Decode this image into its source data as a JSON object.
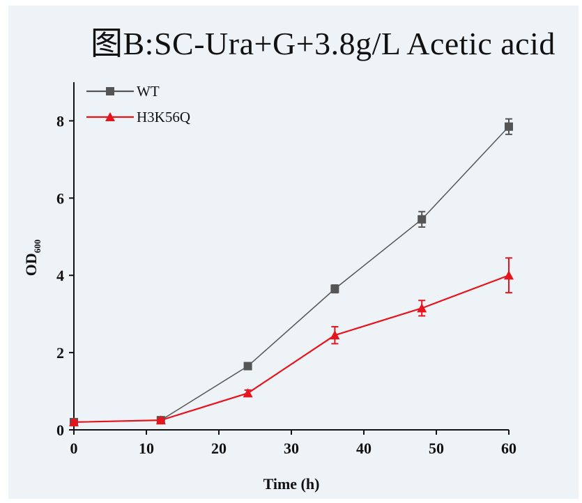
{
  "chart_data": {
    "type": "line",
    "title": "图B:SC-Ura+G+3.8g/L Acetic acid",
    "xlabel": "Time (h)",
    "ylabel": "OD",
    "ylabel_subscript": "600",
    "xlim": [
      0,
      60
    ],
    "ylim": [
      0,
      9
    ],
    "xticks": [
      0,
      10,
      20,
      30,
      40,
      50,
      60
    ],
    "yticks": [
      0,
      2,
      4,
      6,
      8
    ],
    "grid": false,
    "legend_position": "top-left",
    "x": [
      0,
      12,
      24,
      36,
      48,
      60
    ],
    "series": [
      {
        "name": "WT",
        "color": "#555555",
        "marker": "square",
        "values": [
          0.2,
          0.25,
          1.65,
          3.65,
          5.45,
          7.85
        ],
        "errors": [
          0.05,
          0.05,
          0.08,
          0.1,
          0.2,
          0.2
        ]
      },
      {
        "name": "H3K56Q",
        "color": "#e8141c",
        "marker": "triangle",
        "values": [
          0.2,
          0.25,
          0.95,
          2.45,
          3.15,
          4.0
        ],
        "errors": [
          0.05,
          0.05,
          0.08,
          0.22,
          0.2,
          0.45
        ]
      }
    ]
  }
}
